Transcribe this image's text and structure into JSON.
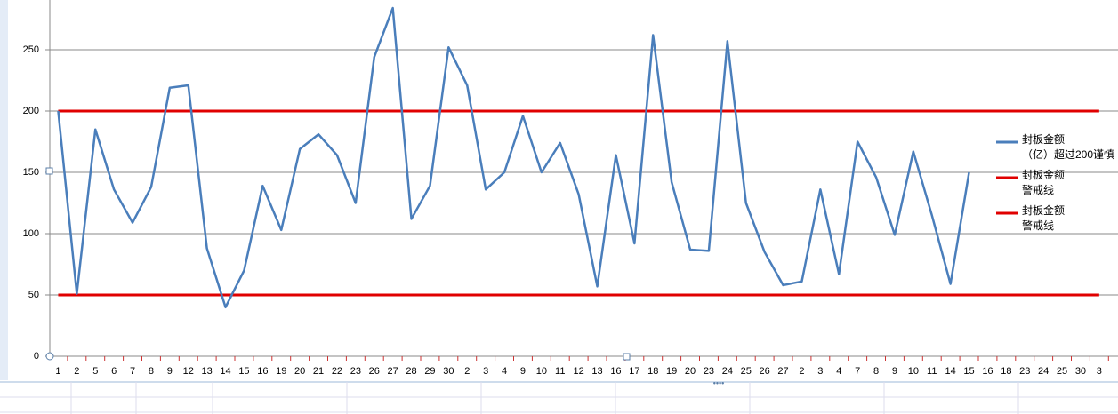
{
  "chart_data": {
    "type": "line",
    "categories": [
      "1",
      "2",
      "5",
      "6",
      "7",
      "8",
      "9",
      "12",
      "13",
      "14",
      "15",
      "16",
      "19",
      "20",
      "21",
      "22",
      "23",
      "26",
      "27",
      "28",
      "29",
      "30",
      "2",
      "3",
      "4",
      "9",
      "10",
      "11",
      "12",
      "13",
      "16",
      "17",
      "18",
      "19",
      "20",
      "23",
      "24",
      "25",
      "26",
      "27",
      "2",
      "3",
      "4",
      "7",
      "8",
      "9",
      "10",
      "11",
      "14",
      "15",
      "16",
      "18",
      "23",
      "24",
      "25",
      "30",
      "3"
    ],
    "series": [
      {
        "name": "封板金额\n（亿）超过200谨慎",
        "color": "#4a7ebb",
        "values": [
          200,
          51,
          185,
          136,
          109,
          138,
          219,
          221,
          88,
          40,
          70,
          139,
          103,
          169,
          181,
          164,
          125,
          244,
          284,
          112,
          139,
          252,
          221,
          136,
          150,
          196,
          150,
          174,
          132,
          57,
          164,
          92,
          262,
          142,
          87,
          86,
          257,
          125,
          85,
          58,
          61,
          136,
          67,
          175,
          146,
          99,
          167,
          115,
          59,
          150,
          null,
          null,
          null,
          null,
          null,
          null,
          null
        ]
      },
      {
        "name": "封板金额\n警戒线",
        "color": "#e00000",
        "values": [
          200,
          200,
          200,
          200,
          200,
          200,
          200,
          200,
          200,
          200,
          200,
          200,
          200,
          200,
          200,
          200,
          200,
          200,
          200,
          200,
          200,
          200,
          200,
          200,
          200,
          200,
          200,
          200,
          200,
          200,
          200,
          200,
          200,
          200,
          200,
          200,
          200,
          200,
          200,
          200,
          200,
          200,
          200,
          200,
          200,
          200,
          200,
          200,
          200,
          200,
          200,
          200,
          200,
          200,
          200,
          200,
          200
        ]
      },
      {
        "name": "封板金额\n警戒线",
        "color": "#e00000",
        "values": [
          50,
          50,
          50,
          50,
          50,
          50,
          50,
          50,
          50,
          50,
          50,
          50,
          50,
          50,
          50,
          50,
          50,
          50,
          50,
          50,
          50,
          50,
          50,
          50,
          50,
          50,
          50,
          50,
          50,
          50,
          50,
          50,
          50,
          50,
          50,
          50,
          50,
          50,
          50,
          50,
          50,
          50,
          50,
          50,
          50,
          50,
          50,
          50,
          50,
          50,
          50,
          50,
          50,
          50,
          50,
          50,
          50
        ]
      }
    ],
    "ylim": [
      0,
      300
    ],
    "yticks": [
      0,
      50,
      100,
      150,
      200,
      250
    ],
    "grid": true
  }
}
